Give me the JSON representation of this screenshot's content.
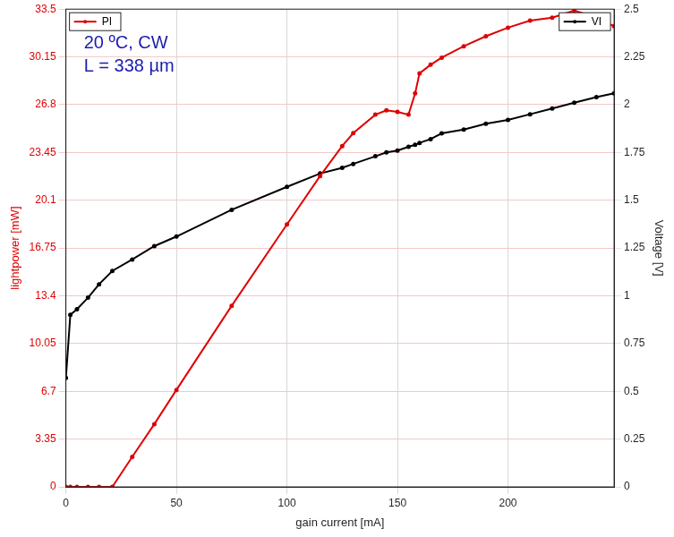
{
  "chart_data": {
    "type": "line",
    "x": [
      0,
      2,
      5,
      10,
      15,
      21,
      30,
      40,
      50,
      75,
      100,
      115,
      125,
      130,
      140,
      145,
      150,
      155,
      158,
      160,
      165,
      170,
      180,
      190,
      200,
      210,
      220,
      230,
      240,
      248
    ],
    "series": [
      {
        "name": "PI",
        "color": "#e00000",
        "axis": "y",
        "marker": "circle",
        "line_style": "solid",
        "values": [
          0,
          0,
          0,
          0,
          0,
          0,
          2.1,
          4.4,
          6.8,
          12.7,
          18.4,
          21.8,
          23.9,
          24.8,
          26.1,
          26.4,
          26.3,
          26.1,
          27.6,
          29.0,
          29.6,
          30.1,
          30.9,
          31.6,
          32.2,
          32.7,
          32.9,
          33.4,
          32.9,
          32.3
        ]
      },
      {
        "name": "VI",
        "color": "#000000",
        "axis": "y2",
        "marker": "circle",
        "line_style": "solid",
        "values": [
          0.57,
          0.9,
          0.93,
          0.99,
          1.06,
          1.13,
          1.19,
          1.26,
          1.31,
          1.45,
          1.57,
          1.64,
          1.67,
          1.69,
          1.73,
          1.75,
          1.76,
          1.78,
          1.79,
          1.8,
          1.82,
          1.85,
          1.87,
          1.9,
          1.92,
          1.95,
          1.98,
          2.01,
          2.04,
          2.06
        ]
      }
    ],
    "x_label": "gain current [mA]",
    "y_label": "lightpower [mW]",
    "y2_label": "Voltage [V]",
    "annotations": [
      "20 ºC, CW",
      "L = 338 µm"
    ],
    "xlim": [
      0,
      248
    ],
    "xticks": [
      0,
      50,
      100,
      150,
      200
    ],
    "ylim": [
      0,
      33.5
    ],
    "yticks": [
      0,
      3.35,
      6.7,
      10.05,
      13.4,
      16.75,
      20.1,
      23.45,
      26.8,
      30.15,
      33.5
    ],
    "y2lim": [
      0,
      2.5
    ],
    "y2ticks": [
      0,
      0.25,
      0.5,
      0.75,
      1,
      1.25,
      1.5,
      1.75,
      2,
      2.25,
      2.5
    ],
    "grid": true,
    "legend": "top"
  }
}
